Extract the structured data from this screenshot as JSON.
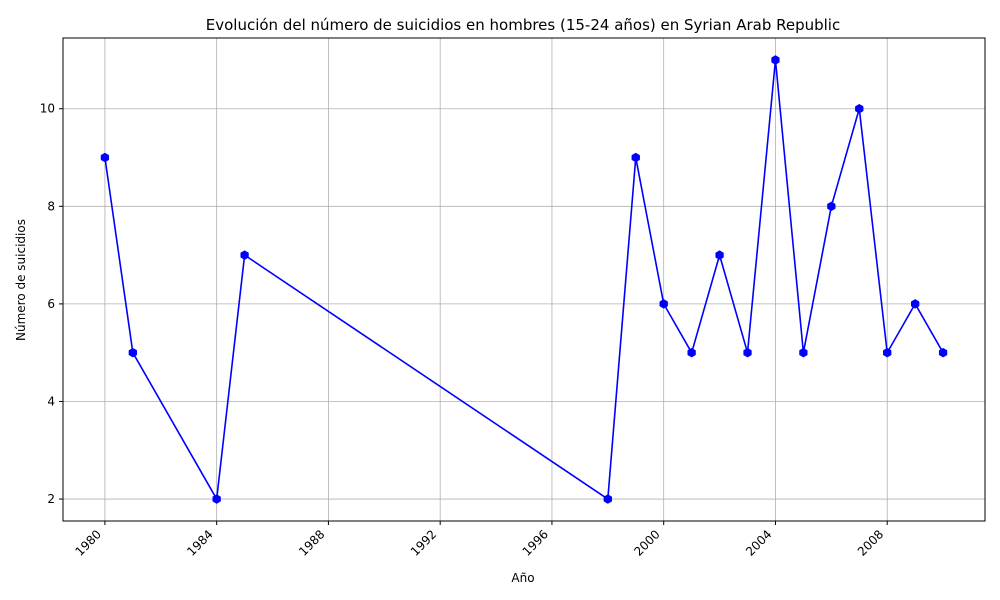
{
  "chart_data": {
    "type": "line",
    "title": "Evolución del número de suicidios en hombres (15-24 años) en Syrian Arab Republic",
    "xlabel": "Año",
    "ylabel": "Número de suicidios",
    "x": [
      1980,
      1981,
      1984,
      1985,
      1998,
      1999,
      2000,
      2001,
      2002,
      2003,
      2004,
      2005,
      2006,
      2007,
      2008,
      2009,
      2010
    ],
    "series": [
      {
        "values": [
          9,
          5,
          2,
          7,
          2,
          9,
          6,
          5,
          7,
          5,
          11,
          5,
          8,
          10,
          5,
          6,
          5
        ],
        "color": "#0000ff",
        "marker": "hexagon"
      }
    ],
    "xlim": [
      1978.5,
      2011.5
    ],
    "ylim": [
      1.55,
      11.45
    ],
    "xticks": [
      1980,
      1984,
      1988,
      1992,
      1996,
      2000,
      2004,
      2008
    ],
    "yticks": [
      2,
      4,
      6,
      8,
      10
    ],
    "grid": true,
    "x_tick_rotation": 45
  }
}
